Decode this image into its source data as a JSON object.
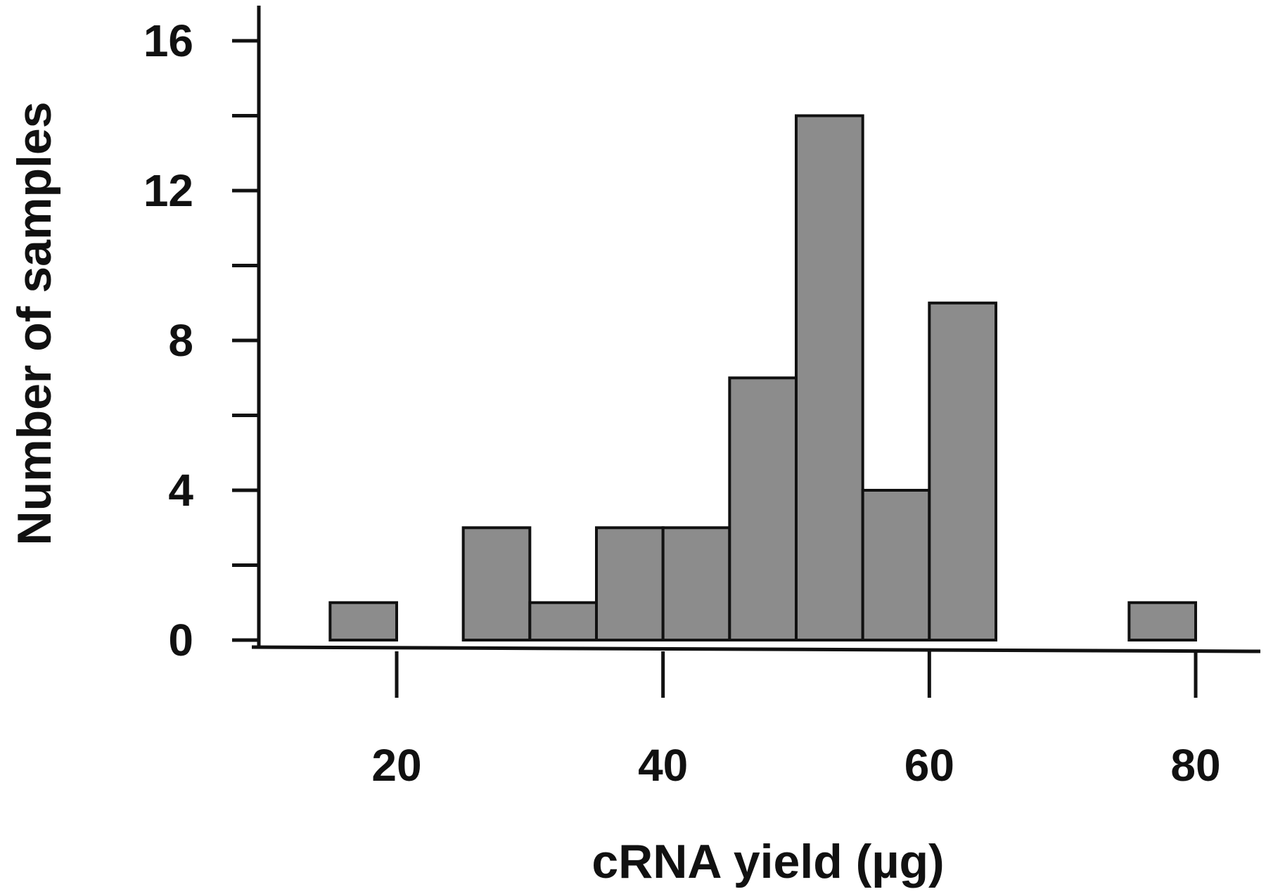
{
  "chart_data": {
    "type": "bar",
    "title": "",
    "xlabel": "cRNA yield (µg)",
    "ylabel": "Number of samples",
    "xlim": [
      10,
      85
    ],
    "ylim": [
      0,
      17
    ],
    "x_ticks": [
      20,
      40,
      60,
      80
    ],
    "y_ticks": [
      0,
      4,
      8,
      12,
      16
    ],
    "y_minor_ticks": [
      2,
      6,
      10,
      14
    ],
    "bin_width": 5,
    "bins": [
      {
        "start": 15,
        "end": 20,
        "count": 1
      },
      {
        "start": 25,
        "end": 30,
        "count": 3
      },
      {
        "start": 30,
        "end": 35,
        "count": 1
      },
      {
        "start": 35,
        "end": 40,
        "count": 3
      },
      {
        "start": 40,
        "end": 45,
        "count": 3
      },
      {
        "start": 45,
        "end": 50,
        "count": 7
      },
      {
        "start": 50,
        "end": 55,
        "count": 14
      },
      {
        "start": 55,
        "end": 60,
        "count": 4
      },
      {
        "start": 60,
        "end": 65,
        "count": 9
      },
      {
        "start": 75,
        "end": 80,
        "count": 1
      }
    ],
    "bar_color": "#8c8c8c",
    "grid": false,
    "legend": "none"
  }
}
